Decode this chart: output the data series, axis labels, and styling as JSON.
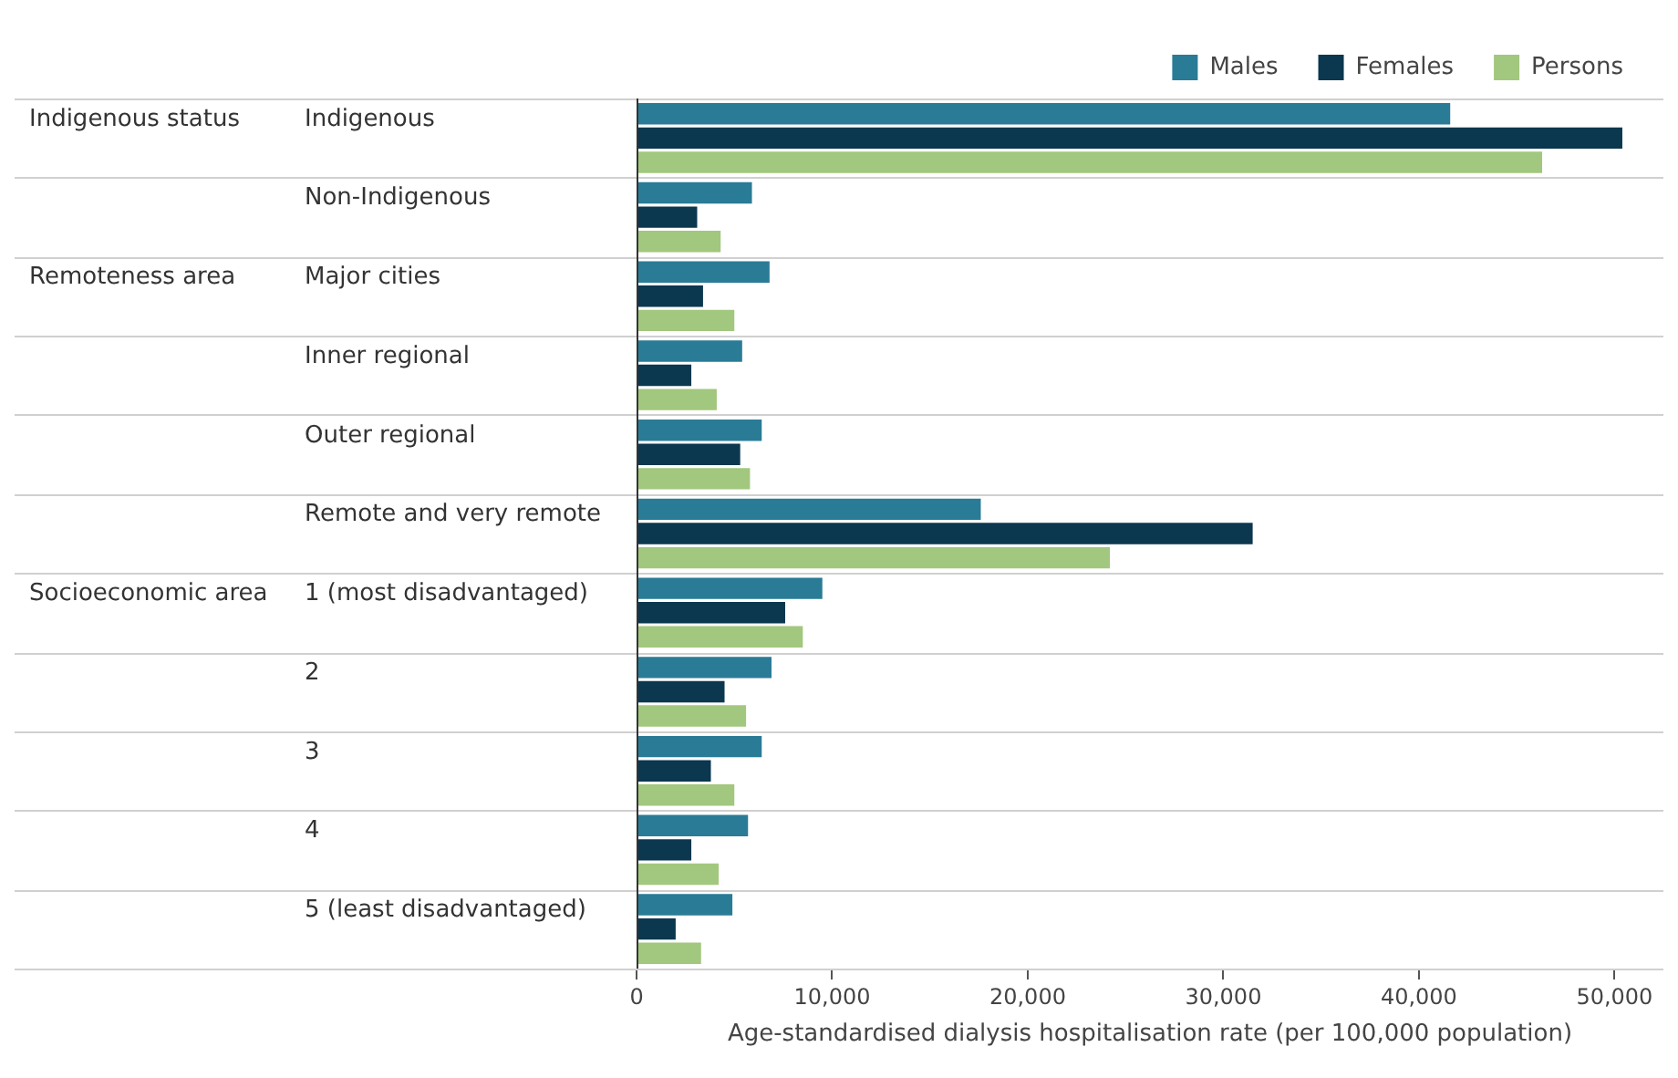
{
  "chart_data": {
    "type": "bar",
    "orientation": "horizontal",
    "categories": [
      "Indigenous",
      "Non-Indigenous",
      "Major cities",
      "Inner regional",
      "Outer regional",
      "Remote and very remote",
      "1 (most disadvantaged)",
      "2",
      "3",
      "4",
      "5 (least disadvantaged)"
    ],
    "series": [
      {
        "name": "Males",
        "color": "#2a7b96",
        "values": [
          41600,
          5900,
          6800,
          5400,
          6400,
          17600,
          9500,
          6900,
          6400,
          5700,
          4900
        ]
      },
      {
        "name": "Females",
        "color": "#0b374f",
        "values": [
          50400,
          3100,
          3400,
          2800,
          5300,
          31500,
          7600,
          4500,
          3800,
          2800,
          2000
        ]
      },
      {
        "name": "Persons",
        "color": "#a2c77e",
        "values": [
          46300,
          4300,
          5000,
          4100,
          5800,
          24200,
          8500,
          5600,
          5000,
          4200,
          3300
        ]
      }
    ],
    "xlim": [
      0,
      52500
    ],
    "xticks": [
      {
        "value": 0,
        "label": "0"
      },
      {
        "value": 10000,
        "label": "10,000"
      },
      {
        "value": 20000,
        "label": "20,000"
      },
      {
        "value": 30000,
        "label": "30,000"
      },
      {
        "value": 40000,
        "label": "40,000"
      },
      {
        "value": 50000,
        "label": "50,000"
      }
    ],
    "xlabel": "Age-standardised dialysis hospitalisation rate (per 100,000 population)",
    "annotations": [
      "Indigenous status",
      "Remoteness area",
      "Socioeconomic area"
    ],
    "grid": "y",
    "legend": "top right"
  }
}
